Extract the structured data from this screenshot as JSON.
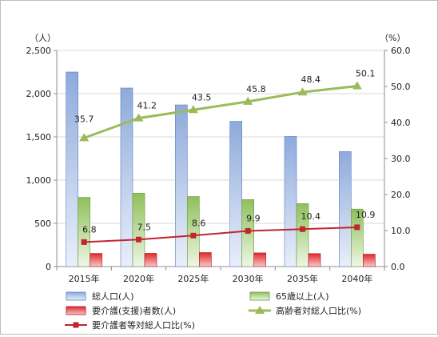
{
  "chart_data": {
    "type": "bar",
    "categories": [
      "2015年",
      "2020年",
      "2025年",
      "2030年",
      "2035年",
      "2040年"
    ],
    "y_left": {
      "unit": "（人）",
      "min": 0,
      "max": 2500,
      "step": 500,
      "tick_labels": [
        "0",
        "500",
        "1,000",
        "1,500",
        "2,000",
        "2,500"
      ]
    },
    "y_right": {
      "unit": "（%）",
      "min": 0,
      "max": 60,
      "step": 10,
      "tick_labels": [
        "0.0",
        "10.0",
        "20.0",
        "30.0",
        "40.0",
        "50.0",
        "60.0"
      ]
    },
    "grid": true,
    "legend_position": "bottom",
    "series": [
      {
        "name": "総人口(人)",
        "type": "bar",
        "axis": "left",
        "color": "#8eaadb",
        "values": [
          2250,
          2065,
          1870,
          1680,
          1505,
          1330
        ]
      },
      {
        "name": "65歳以上(人)",
        "type": "bar",
        "axis": "left",
        "color": "#8fc05a",
        "values": [
          800,
          848,
          810,
          775,
          728,
          665
        ]
      },
      {
        "name": "要介護(支援)者数(人)",
        "type": "bar",
        "axis": "left",
        "color": "#e3262a",
        "values": [
          152,
          153,
          162,
          158,
          150,
          143
        ]
      },
      {
        "name": "高齢者対総人口比(%)",
        "type": "line",
        "axis": "right",
        "color": "#9bbb59",
        "values": [
          35.7,
          41.2,
          43.5,
          45.8,
          48.4,
          50.1
        ],
        "labels": [
          "35.7",
          "41.2",
          "43.5",
          "45.8",
          "48.4",
          "50.1"
        ]
      },
      {
        "name": "要介護者等対総人口比(%)",
        "type": "line",
        "axis": "right",
        "color": "#c0262d",
        "values": [
          6.8,
          7.5,
          8.6,
          9.9,
          10.4,
          10.9
        ],
        "labels": [
          "6.8",
          "7.5",
          "8.6",
          "9.9",
          "10.4",
          "10.9"
        ]
      }
    ]
  }
}
